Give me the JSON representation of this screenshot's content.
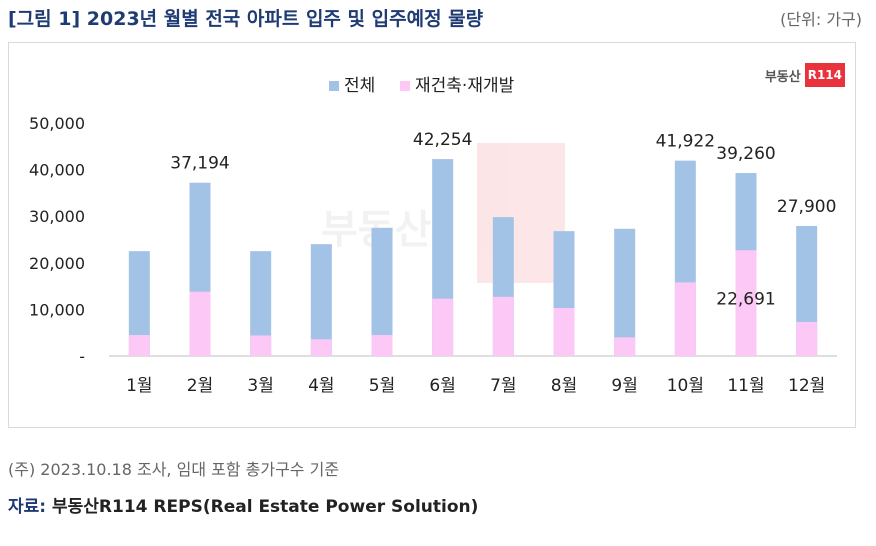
{
  "header": {
    "title": "[그림 1] 2023년 월별 전국 아파트 입주 및 입주예정 물량",
    "unit": "(단위: 가구)"
  },
  "logo": {
    "text": "부동산",
    "badge": "R114",
    "watermark": "부동산 R114"
  },
  "footer": {
    "note": "(주) 2023.10.18 조사, 임대 포함 총가구수 기준",
    "source_label": "자료:",
    "source_text": "부동산R114 REPS(Real Estate Power Solution)"
  },
  "colors": {
    "total": "#a3c3e6",
    "redev": "#fcc8f6",
    "logo": "#e8323c",
    "title": "#1f3b73"
  },
  "chart_data": {
    "type": "bar",
    "categories": [
      "1월",
      "2월",
      "3월",
      "4월",
      "5월",
      "6월",
      "7월",
      "8월",
      "9월",
      "10월",
      "11월",
      "12월"
    ],
    "series": [
      {
        "name": "전체",
        "values": [
          22500,
          37194,
          22500,
          24000,
          27500,
          42254,
          29800,
          26800,
          27300,
          41922,
          39260,
          27900
        ]
      },
      {
        "name": "재건축·재개발",
        "values": [
          4500,
          13800,
          4400,
          3600,
          4500,
          12300,
          12700,
          10300,
          4000,
          15800,
          22691,
          7300
        ]
      }
    ],
    "data_labels": [
      {
        "series": 0,
        "index": 1,
        "text": "37,194"
      },
      {
        "series": 0,
        "index": 5,
        "text": "42,254"
      },
      {
        "series": 0,
        "index": 9,
        "text": "41,922"
      },
      {
        "series": 0,
        "index": 10,
        "text": "39,260"
      },
      {
        "series": 0,
        "index": 11,
        "text": "27,900"
      },
      {
        "series": 1,
        "index": 10,
        "text": "22,691"
      }
    ],
    "yticks": [
      "-",
      "10,000",
      "20,000",
      "30,000",
      "40,000",
      "50,000"
    ],
    "ylim": [
      0,
      50000
    ],
    "legend": "top-center",
    "grid": false,
    "bars": "overlapped"
  }
}
